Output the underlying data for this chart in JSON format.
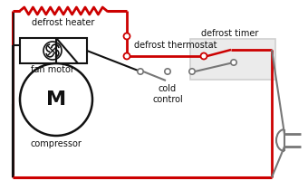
{
  "red": "#cc0000",
  "black": "#111111",
  "gray": "#777777",
  "darkgray": "#444444",
  "lightgray": "#d0d0d0",
  "labels": {
    "defrost_heater": "defrost heater",
    "defrost_thermostat": "defrost thermostat",
    "fan_motor": "fan motor",
    "compressor": "compressor",
    "cold_control": "cold\ncontrol",
    "defrost_timer": "defrost timer"
  },
  "figsize": [
    3.4,
    2.1
  ],
  "dpi": 100
}
